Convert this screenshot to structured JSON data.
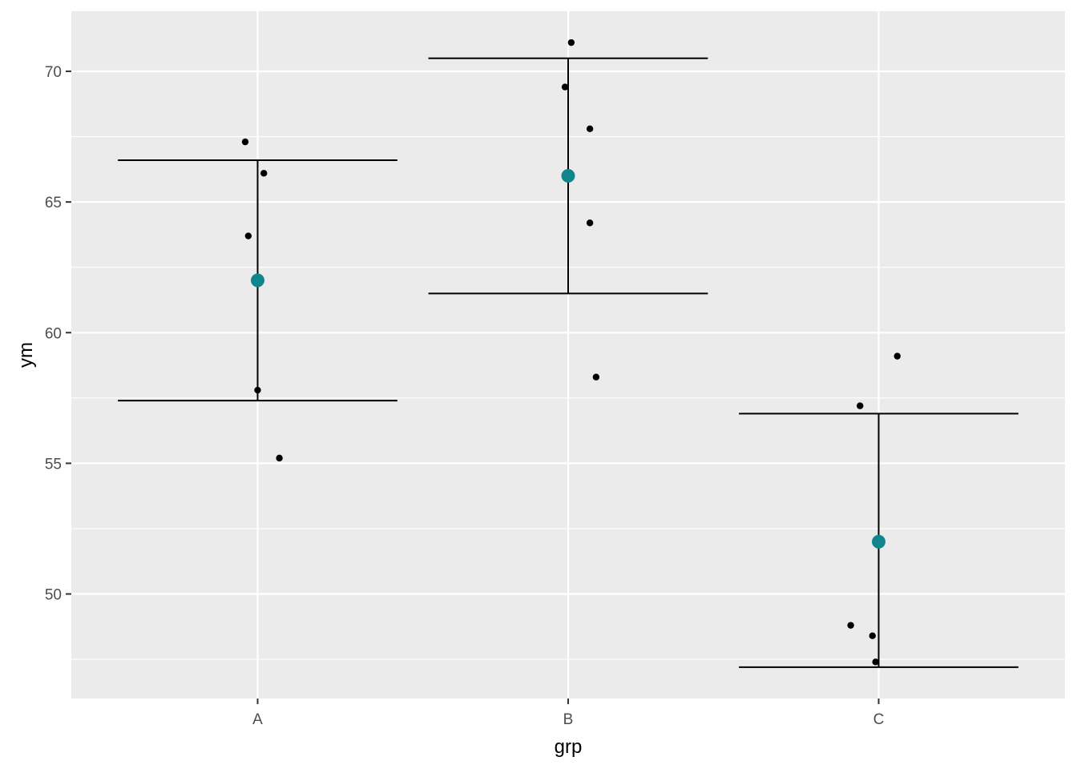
{
  "chart_data": {
    "type": "scatter",
    "xlabel": "grp",
    "ylabel": "ym",
    "categories": [
      "A",
      "B",
      "C"
    ],
    "ylim": [
      46,
      72.3
    ],
    "y_ticks": [
      50,
      55,
      60,
      65,
      70
    ],
    "y_tick_labels": [
      "50",
      "55",
      "60",
      "65",
      "70"
    ],
    "grid": true,
    "points": [
      {
        "group": "A",
        "x": 0.96,
        "y": 67.3
      },
      {
        "group": "A",
        "x": 1.02,
        "y": 66.1
      },
      {
        "group": "A",
        "x": 0.97,
        "y": 63.7
      },
      {
        "group": "A",
        "x": 1.0,
        "y": 57.8
      },
      {
        "group": "A",
        "x": 1.07,
        "y": 55.2
      },
      {
        "group": "B",
        "x": 2.01,
        "y": 71.1
      },
      {
        "group": "B",
        "x": 1.99,
        "y": 69.4
      },
      {
        "group": "B",
        "x": 2.07,
        "y": 67.8
      },
      {
        "group": "B",
        "x": 2.07,
        "y": 64.2
      },
      {
        "group": "B",
        "x": 2.09,
        "y": 58.3
      },
      {
        "group": "C",
        "x": 3.06,
        "y": 59.1
      },
      {
        "group": "C",
        "x": 2.94,
        "y": 57.2
      },
      {
        "group": "C",
        "x": 2.91,
        "y": 48.8
      },
      {
        "group": "C",
        "x": 2.98,
        "y": 48.4
      },
      {
        "group": "C",
        "x": 2.99,
        "y": 47.4
      }
    ],
    "summary": [
      {
        "group": "A",
        "mean": 62.0,
        "ymin": 57.4,
        "ymax": 66.6
      },
      {
        "group": "B",
        "mean": 66.0,
        "ymin": 61.5,
        "ymax": 70.5
      },
      {
        "group": "C",
        "mean": 52.0,
        "ymin": 47.2,
        "ymax": 56.9
      }
    ],
    "colors": {
      "panel": "#ebebeb",
      "grid": "#ffffff",
      "points": "#000000",
      "mean": "#0f868c",
      "errorbar": "#000000"
    }
  }
}
